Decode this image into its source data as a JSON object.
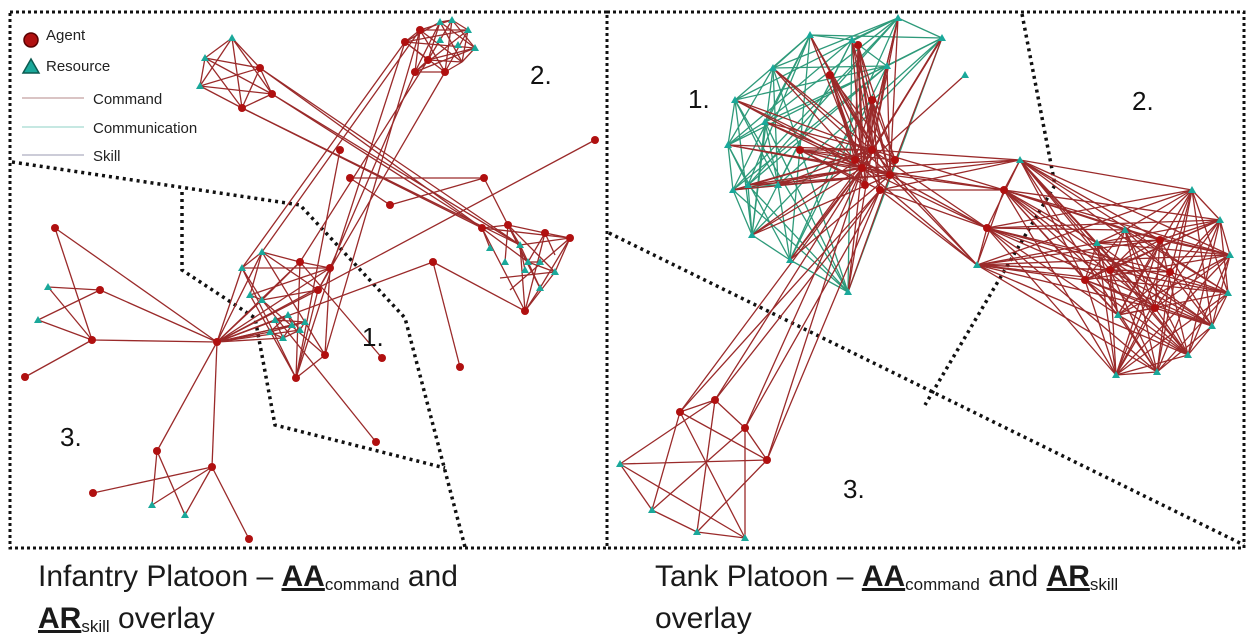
{
  "legend": {
    "agent": "Agent",
    "resource": "Resource",
    "command": "Command",
    "communication": "Communication",
    "skill": "Skill"
  },
  "colors": {
    "agent": "#b01010",
    "resource": "#1aa89a",
    "command_edge": "#9a2a2a",
    "communication_edge": "#2e9a7a",
    "skill_edge": "#8a8aa0",
    "frame": "#111111"
  },
  "panels": {
    "left": {
      "regions": [
        "1.",
        "2.",
        "3."
      ]
    },
    "right": {
      "regions": [
        "1.",
        "2.",
        "3."
      ]
    }
  },
  "captions": {
    "left": {
      "prefix": "Infantry Platoon – ",
      "aa": "AA",
      "aa_sub": "command",
      "mid": " and",
      "ar": "AR",
      "ar_sub": "skill",
      "suffix": " overlay"
    },
    "right": {
      "prefix": "Tank Platoon – ",
      "aa": "AA",
      "aa_sub": "command",
      "mid": " and ",
      "ar": "AR",
      "ar_sub": "skill",
      "suffix": "overlay"
    }
  }
}
